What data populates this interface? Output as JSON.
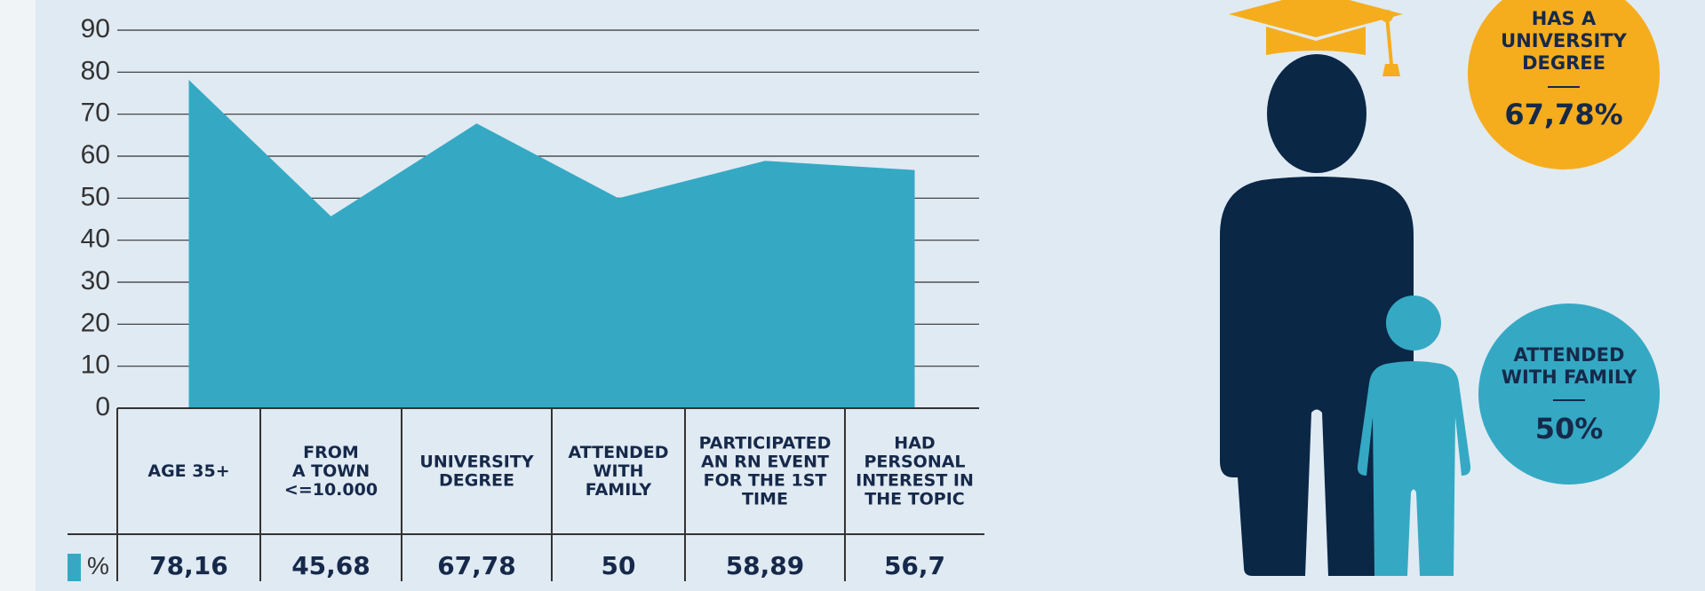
{
  "chart_data": {
    "type": "area",
    "categories": [
      "AGE 35+",
      "FROM\nA TOWN\n<=10.000",
      "UNIVERSITY\nDEGREE",
      "ATTENDED\nWITH\nFAMILY",
      "PARTICIPATED\nAN RN EVENT\nFOR THE 1ST\nTIME",
      "HAD\nPERSONAL\nINTEREST IN\nTHE TOPIC"
    ],
    "series": [
      {
        "name": "%",
        "color": "#35a9c4",
        "values": [
          78.16,
          45.68,
          67.78,
          50,
          58.89,
          56.7
        ],
        "value_labels": [
          "78,16",
          "45,68",
          "67,78",
          "50",
          "58,89",
          "56,7"
        ]
      }
    ],
    "ylim": [
      0,
      90
    ],
    "yticks": [
      0,
      10,
      20,
      30,
      40,
      50,
      60,
      70,
      80,
      90
    ],
    "grid": true
  },
  "infographic": [
    {
      "label": "HAS A\nUNIVERSITY\nDEGREE",
      "value": "67,78%"
    },
    {
      "label": "ATTENDED\nWITH FAMILY",
      "value": "50%"
    }
  ]
}
